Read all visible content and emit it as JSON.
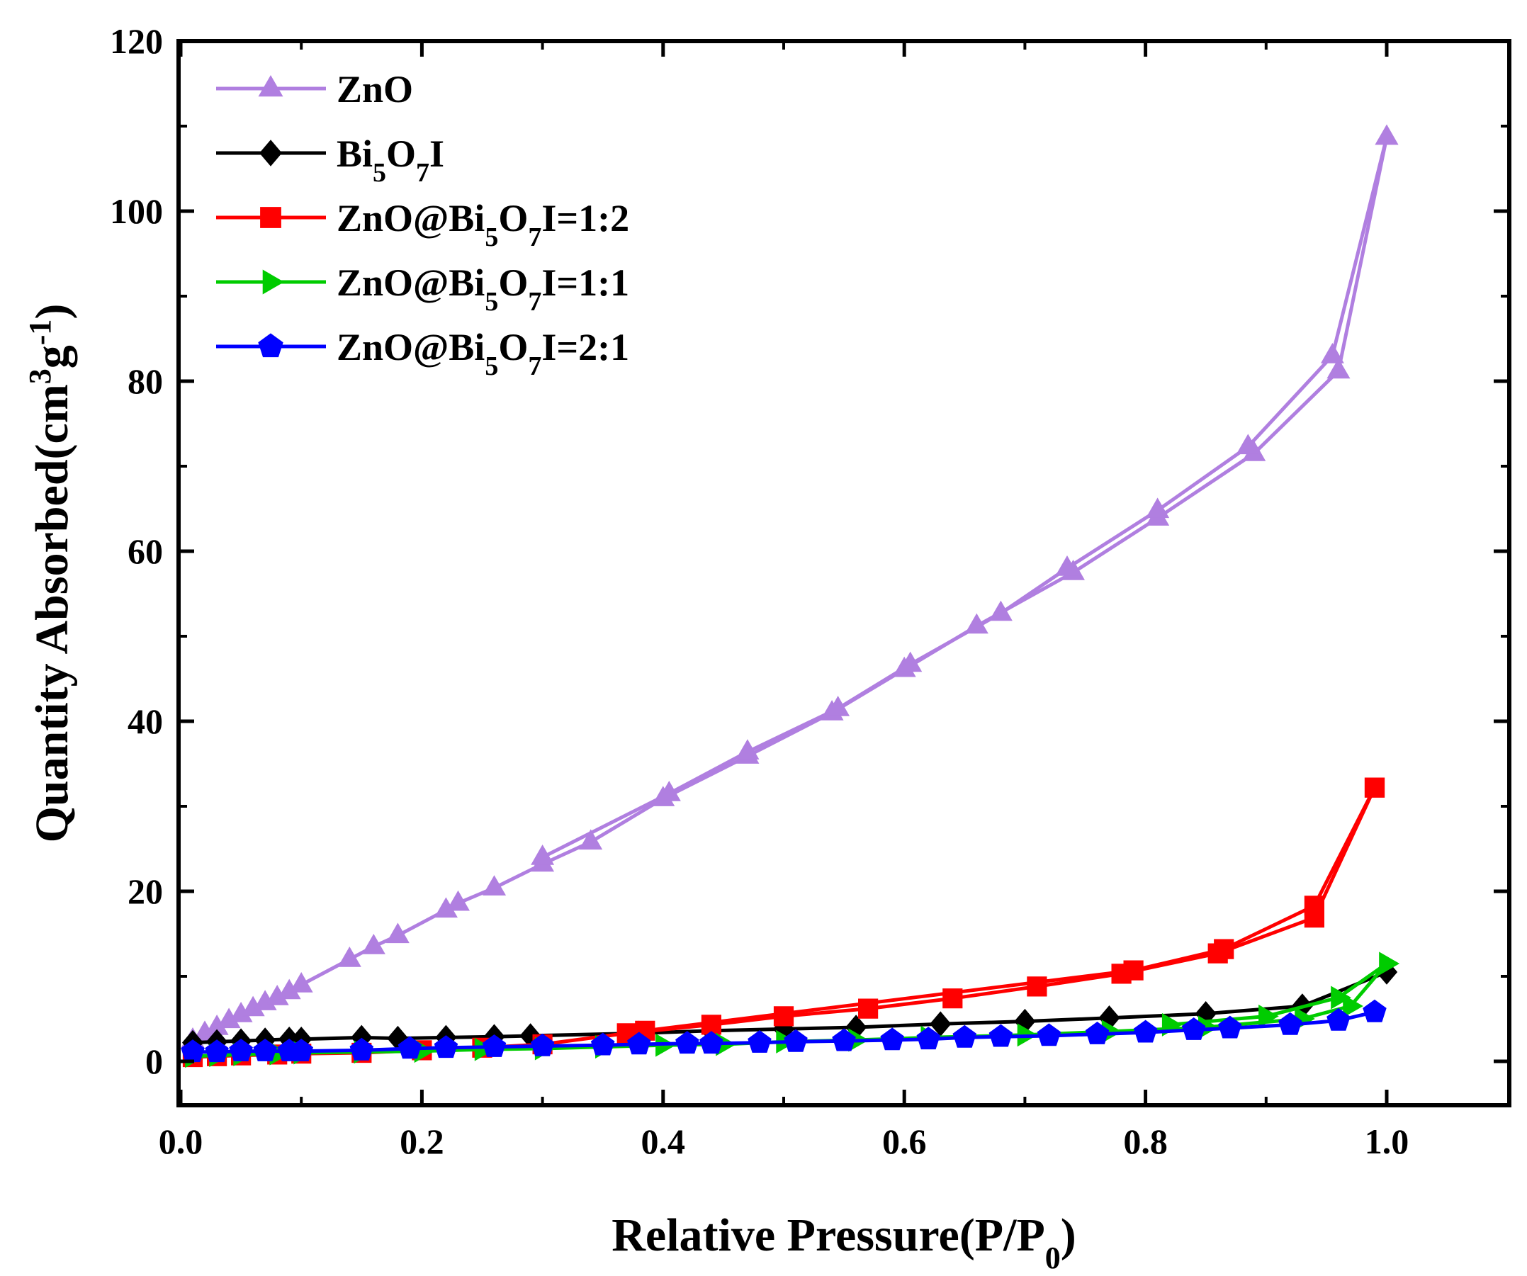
{
  "chart_data": {
    "type": "line",
    "title": "",
    "xlabel": {
      "main": "Relative Pressure(P/P",
      "sub": "0",
      "tail": ")"
    },
    "ylabel": {
      "main": "Quantity Absorbed(cm",
      "sup1": "3",
      "mid": "g",
      "sup2": "-1",
      "tail": ")"
    },
    "xlim": [
      0,
      1.1
    ],
    "ylim": [
      -5,
      120
    ],
    "xticks": [
      0.0,
      0.2,
      0.4,
      0.6,
      0.8,
      1.0
    ],
    "xtick_labels": [
      "0.0",
      "0.2",
      "0.4",
      "0.6",
      "0.8",
      "1.0"
    ],
    "yticks": [
      0,
      20,
      40,
      60,
      80,
      100,
      120
    ],
    "ytick_labels": [
      "0",
      "20",
      "40",
      "60",
      "80",
      "100",
      "120"
    ],
    "legend_position": "top-left",
    "series": [
      {
        "name": "ZnO",
        "legend": {
          "pre": "ZnO",
          "sub1": "",
          "mid": "",
          "sub2": "",
          "post": ""
        },
        "color": "#b07fe0",
        "marker": "triangle-up",
        "adsorption": [
          [
            0.01,
            2.5
          ],
          [
            0.02,
            3.3
          ],
          [
            0.03,
            4.0
          ],
          [
            0.04,
            4.8
          ],
          [
            0.05,
            5.5
          ],
          [
            0.06,
            6.2
          ],
          [
            0.07,
            6.9
          ],
          [
            0.08,
            7.5
          ],
          [
            0.09,
            8.2
          ],
          [
            0.1,
            9.0
          ],
          [
            0.14,
            12.0
          ],
          [
            0.16,
            13.5
          ],
          [
            0.18,
            14.8
          ],
          [
            0.22,
            17.8
          ],
          [
            0.23,
            18.6
          ],
          [
            0.26,
            20.4
          ],
          [
            0.3,
            23.2
          ],
          [
            0.34,
            25.8
          ],
          [
            0.4,
            30.9
          ],
          [
            0.47,
            35.9
          ],
          [
            0.54,
            41.0
          ],
          [
            0.6,
            46.1
          ],
          [
            0.66,
            51.2
          ],
          [
            0.74,
            57.5
          ],
          [
            0.81,
            63.9
          ],
          [
            0.89,
            71.5
          ],
          [
            0.96,
            81.2
          ],
          [
            1.0,
            108.7
          ]
        ],
        "desorption": [
          [
            1.0,
            108.7
          ],
          [
            0.955,
            83.0
          ],
          [
            0.885,
            72.3
          ],
          [
            0.81,
            64.8
          ],
          [
            0.735,
            58.0
          ],
          [
            0.68,
            52.7
          ],
          [
            0.605,
            46.7
          ],
          [
            0.545,
            41.5
          ],
          [
            0.47,
            36.4
          ],
          [
            0.405,
            31.5
          ],
          [
            0.3,
            24.0
          ]
        ]
      },
      {
        "name": "Bi5O7I",
        "legend": {
          "pre": "Bi",
          "sub1": "5",
          "mid": "O",
          "sub2": "7",
          "post": "I"
        },
        "color": "#000000",
        "marker": "diamond",
        "adsorption": [
          [
            0.01,
            2.2
          ],
          [
            0.03,
            2.3
          ],
          [
            0.05,
            2.4
          ],
          [
            0.07,
            2.5
          ],
          [
            0.09,
            2.6
          ],
          [
            0.1,
            2.6
          ],
          [
            0.15,
            2.8
          ],
          [
            0.18,
            2.7
          ],
          [
            0.22,
            2.8
          ],
          [
            0.26,
            2.9
          ],
          [
            0.29,
            3.0
          ],
          [
            0.38,
            3.3
          ],
          [
            0.44,
            3.6
          ],
          [
            0.5,
            3.8
          ],
          [
            0.56,
            4.0
          ],
          [
            0.63,
            4.4
          ],
          [
            0.7,
            4.7
          ],
          [
            0.77,
            5.1
          ],
          [
            0.85,
            5.6
          ],
          [
            0.93,
            6.5
          ],
          [
            1.0,
            10.5
          ]
        ]
      },
      {
        "name": "ZnO@Bi5O7I=1:2",
        "legend": {
          "pre": "ZnO@Bi",
          "sub1": "5",
          "mid": "O",
          "sub2": "7",
          "post": "I=1:2"
        },
        "color": "#ff0000",
        "marker": "square",
        "adsorption": [
          [
            0.01,
            0.5
          ],
          [
            0.03,
            0.6
          ],
          [
            0.05,
            0.7
          ],
          [
            0.08,
            0.8
          ],
          [
            0.1,
            0.9
          ],
          [
            0.15,
            1.0
          ],
          [
            0.2,
            1.3
          ],
          [
            0.25,
            1.6
          ],
          [
            0.3,
            2.0
          ],
          [
            0.37,
            3.3
          ],
          [
            0.44,
            4.3
          ],
          [
            0.5,
            5.3
          ],
          [
            0.57,
            6.2
          ],
          [
            0.64,
            7.4
          ],
          [
            0.71,
            8.8
          ],
          [
            0.78,
            10.3
          ],
          [
            0.86,
            12.7
          ],
          [
            0.94,
            16.9
          ],
          [
            0.99,
            32.2
          ]
        ],
        "desorption": [
          [
            0.99,
            32.2
          ],
          [
            0.94,
            18.3
          ],
          [
            0.865,
            13.2
          ],
          [
            0.79,
            10.7
          ],
          [
            0.385,
            3.6
          ]
        ]
      },
      {
        "name": "ZnO@Bi5O7I=1:1",
        "legend": {
          "pre": "ZnO@Bi",
          "sub1": "5",
          "mid": "O",
          "sub2": "7",
          "post": "I=1:1"
        },
        "color": "#00cc00",
        "marker": "triangle-right",
        "adsorption": [
          [
            0.01,
            0.6
          ],
          [
            0.03,
            0.7
          ],
          [
            0.05,
            0.8
          ],
          [
            0.08,
            0.9
          ],
          [
            0.1,
            1.0
          ],
          [
            0.15,
            1.1
          ],
          [
            0.2,
            1.2
          ],
          [
            0.25,
            1.4
          ],
          [
            0.3,
            1.5
          ],
          [
            0.35,
            1.7
          ],
          [
            0.4,
            1.9
          ],
          [
            0.45,
            2.0
          ],
          [
            0.5,
            2.3
          ],
          [
            0.56,
            2.5
          ],
          [
            0.62,
            2.8
          ],
          [
            0.7,
            3.1
          ],
          [
            0.77,
            3.5
          ],
          [
            0.85,
            4.0
          ],
          [
            0.93,
            5.0
          ],
          [
            0.97,
            6.5
          ],
          [
            1.0,
            11.5
          ]
        ],
        "desorption": [
          [
            1.0,
            11.5
          ],
          [
            0.96,
            7.5
          ],
          [
            0.9,
            5.3
          ],
          [
            0.82,
            4.3
          ]
        ]
      },
      {
        "name": "ZnO@Bi5O7I=2:1",
        "legend": {
          "pre": "ZnO@Bi",
          "sub1": "5",
          "mid": "O",
          "sub2": "7",
          "post": "I=2:1"
        },
        "color": "#0000ff",
        "marker": "pentagon",
        "adsorption": [
          [
            0.01,
            1.1
          ],
          [
            0.03,
            1.1
          ],
          [
            0.05,
            1.2
          ],
          [
            0.07,
            1.2
          ],
          [
            0.09,
            1.2
          ],
          [
            0.1,
            1.2
          ],
          [
            0.15,
            1.3
          ],
          [
            0.19,
            1.5
          ],
          [
            0.22,
            1.6
          ],
          [
            0.26,
            1.7
          ],
          [
            0.3,
            1.8
          ],
          [
            0.35,
            1.9
          ],
          [
            0.38,
            2.0
          ],
          [
            0.42,
            2.1
          ],
          [
            0.44,
            2.1
          ],
          [
            0.48,
            2.2
          ],
          [
            0.51,
            2.3
          ],
          [
            0.55,
            2.4
          ],
          [
            0.59,
            2.5
          ],
          [
            0.62,
            2.6
          ],
          [
            0.65,
            2.8
          ],
          [
            0.68,
            2.9
          ],
          [
            0.72,
            3.0
          ],
          [
            0.76,
            3.2
          ],
          [
            0.8,
            3.4
          ],
          [
            0.84,
            3.7
          ],
          [
            0.87,
            3.9
          ],
          [
            0.92,
            4.3
          ],
          [
            0.96,
            4.8
          ],
          [
            0.99,
            5.8
          ]
        ]
      }
    ]
  }
}
